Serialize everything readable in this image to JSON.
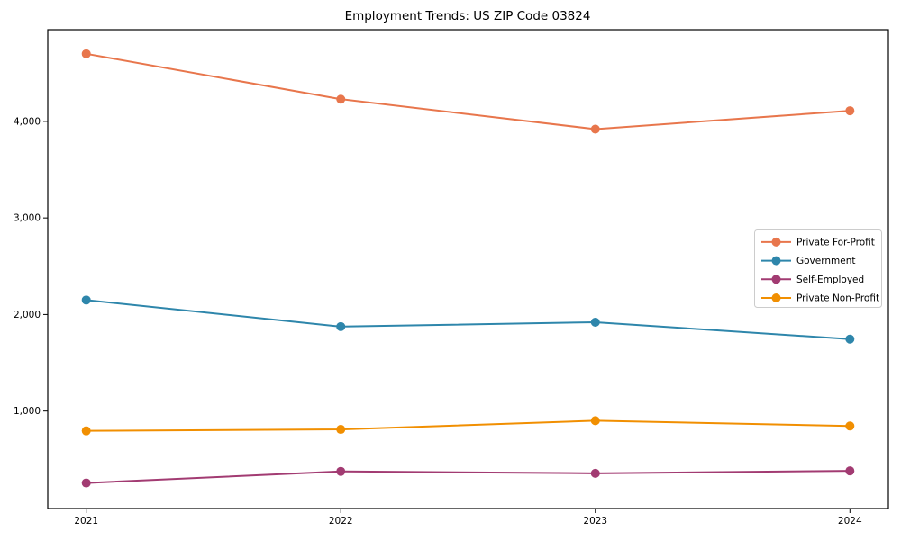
{
  "chart_data": {
    "type": "line",
    "title": "Employment Trends: US ZIP Code 03824",
    "x": [
      "2021",
      "2022",
      "2023",
      "2024"
    ],
    "series": [
      {
        "name": "Private For-Profit",
        "color": "#E8764C",
        "values": [
          4700,
          4230,
          3920,
          4110
        ]
      },
      {
        "name": "Government",
        "color": "#2E86AB",
        "values": [
          2150,
          1875,
          1920,
          1745
        ]
      },
      {
        "name": "Self-Employed",
        "color": "#A23B72",
        "values": [
          255,
          375,
          355,
          380
        ]
      },
      {
        "name": "Private Non-Profit",
        "color": "#F18F01",
        "values": [
          795,
          810,
          900,
          845
        ]
      }
    ],
    "yticks": [
      1000,
      2000,
      3000,
      4000
    ],
    "ytick_labels": [
      "1,000",
      "2,000",
      "3,000",
      "4,000"
    ],
    "ylim": [
      -10,
      4950
    ],
    "grid": false,
    "legend_position": "center right",
    "marker": "circle",
    "frame_color": "#000000",
    "legend_border_color": "#cccccc"
  }
}
